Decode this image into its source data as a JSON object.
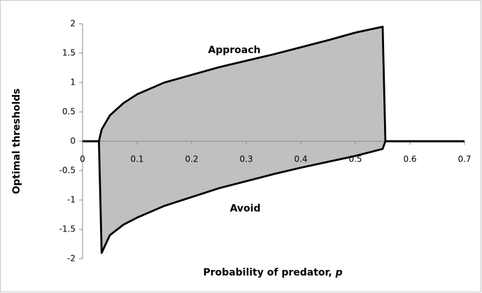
{
  "chart_data": {
    "type": "area_between",
    "ylabel": "Optimal thresholds",
    "xlabel": {
      "text": "Probability of predator,",
      "var": "p"
    },
    "annotations": [
      {
        "text": "Approach",
        "x": 0.23,
        "y": 1.55
      },
      {
        "text": "Avoid",
        "x": 0.27,
        "y": -1.15
      }
    ],
    "x": [
      0,
      0.03,
      0.035,
      0.05,
      0.075,
      0.1,
      0.15,
      0.2,
      0.25,
      0.3,
      0.35,
      0.4,
      0.45,
      0.5,
      0.55,
      0.555,
      0.7
    ],
    "series": [
      {
        "name": "Approach",
        "color": "#000000",
        "values": [
          0,
          0,
          0.2,
          0.44,
          0.65,
          0.8,
          1.0,
          1.13,
          1.26,
          1.37,
          1.48,
          1.6,
          1.72,
          1.85,
          1.95,
          0,
          0
        ]
      },
      {
        "name": "Avoid",
        "color": "#000000",
        "values": [
          0,
          0,
          -1.9,
          -1.6,
          -1.42,
          -1.3,
          -1.1,
          -0.95,
          -0.8,
          -0.68,
          -0.56,
          -0.45,
          -0.35,
          -0.25,
          -0.13,
          0,
          0
        ]
      }
    ],
    "fill": "#c0c0c0",
    "xlim": [
      0,
      0.7
    ],
    "xticks": [
      0,
      0.1,
      0.2,
      0.3,
      0.4,
      0.5,
      0.6,
      0.7
    ],
    "ylim": [
      -2,
      2
    ],
    "yticks": [
      -2,
      -1.5,
      -1,
      -0.5,
      0,
      0.5,
      1,
      1.5,
      2
    ]
  }
}
